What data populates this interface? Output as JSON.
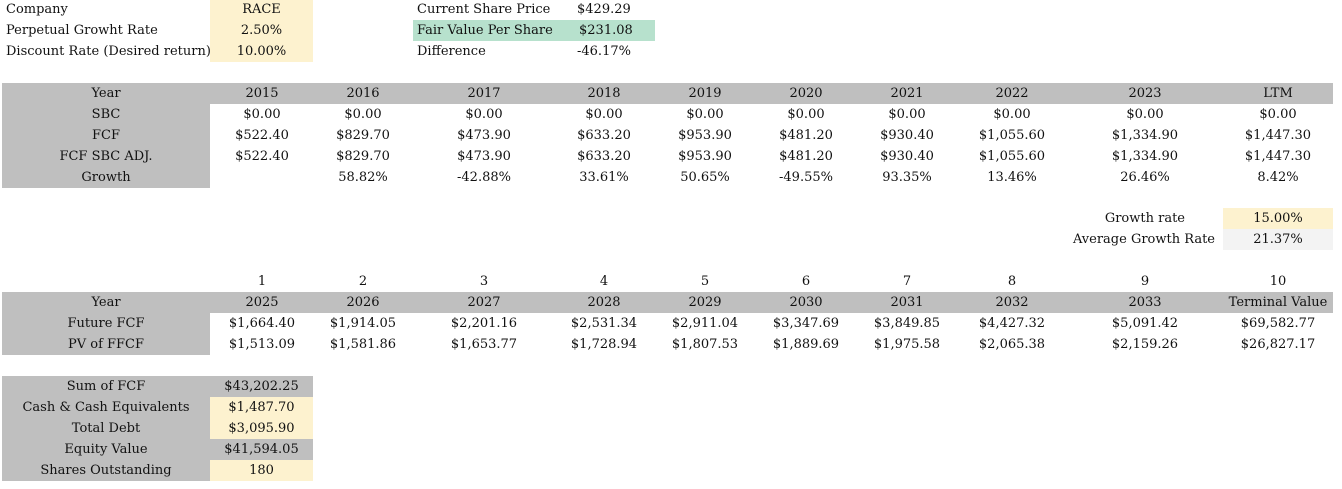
{
  "top": {
    "company_label": "Company",
    "company_value": "RACE",
    "growth_label": "Perpetual Growht Rate",
    "growth_value": "2.50%",
    "discount_label": "Discount Rate (Desired return)",
    "discount_value": "10.00%",
    "price_label": "Current Share Price",
    "price_value": "$429.29",
    "fair_label": "Fair Value Per Share",
    "fair_value": "$231.08",
    "diff_label": "Difference",
    "diff_value": "-46.17%"
  },
  "hist": {
    "year_label": "Year",
    "years": [
      "2015",
      "2016",
      "2017",
      "2018",
      "2019",
      "2020",
      "2021",
      "2022",
      "2023",
      "LTM"
    ],
    "rows": [
      {
        "label": "SBC",
        "values": [
          "$0.00",
          "$0.00",
          "$0.00",
          "$0.00",
          "$0.00",
          "$0.00",
          "$0.00",
          "$0.00",
          "$0.00",
          "$0.00"
        ]
      },
      {
        "label": "FCF",
        "values": [
          "$522.40",
          "$829.70",
          "$473.90",
          "$633.20",
          "$953.90",
          "$481.20",
          "$930.40",
          "$1,055.60",
          "$1,334.90",
          "$1,447.30"
        ]
      },
      {
        "label": "FCF SBC ADJ.",
        "values": [
          "$522.40",
          "$829.70",
          "$473.90",
          "$633.20",
          "$953.90",
          "$481.20",
          "$930.40",
          "$1,055.60",
          "$1,334.90",
          "$1,447.30"
        ]
      },
      {
        "label": "Growth",
        "values": [
          "",
          "58.82%",
          "-42.88%",
          "33.61%",
          "50.65%",
          "-49.55%",
          "93.35%",
          "13.46%",
          "26.46%",
          "8.42%"
        ]
      }
    ]
  },
  "rates": {
    "growth_label": "Growth rate",
    "growth_value": "15.00%",
    "avg_label": "Average Growth Rate",
    "avg_value": "21.37%"
  },
  "proj": {
    "index": [
      "1",
      "2",
      "3",
      "4",
      "5",
      "6",
      "7",
      "8",
      "9",
      "10"
    ],
    "year_label": "Year",
    "years": [
      "2025",
      "2026",
      "2027",
      "2028",
      "2029",
      "2030",
      "2031",
      "2032",
      "2033",
      "Terminal Value"
    ],
    "rows": [
      {
        "label": "Future FCF",
        "values": [
          "$1,664.40",
          "$1,914.05",
          "$2,201.16",
          "$2,531.34",
          "$2,911.04",
          "$3,347.69",
          "$3,849.85",
          "$4,427.32",
          "$5,091.42",
          "$69,582.77"
        ]
      },
      {
        "label": "PV of FFCF",
        "values": [
          "$1,513.09",
          "$1,581.86",
          "$1,653.77",
          "$1,728.94",
          "$1,807.53",
          "$1,889.69",
          "$1,975.58",
          "$2,065.38",
          "$2,159.26",
          "$26,827.17"
        ]
      }
    ]
  },
  "summary": [
    {
      "label": "Sum of FCF",
      "value": "$43,202.25"
    },
    {
      "label": "Cash & Cash Equivalents",
      "value": "$1,487.70"
    },
    {
      "label": "Total Debt",
      "value": "$3,095.90"
    },
    {
      "label": "Equity Value",
      "value": "$41,594.05"
    },
    {
      "label": "Shares Outstanding",
      "value": "180"
    }
  ]
}
